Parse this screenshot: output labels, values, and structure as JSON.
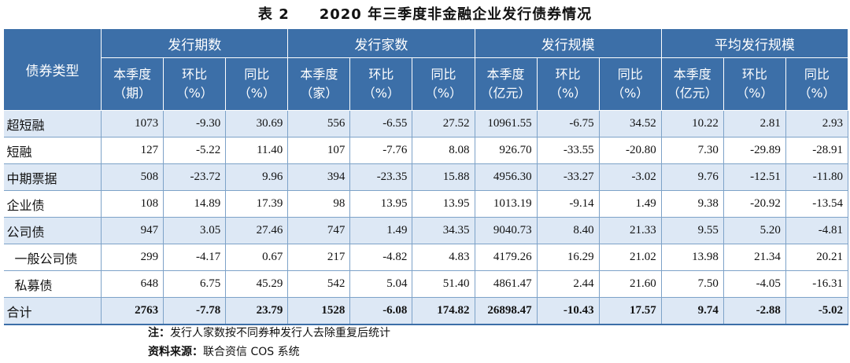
{
  "caption": "表 2　　2020 年三季度非金融企业发行债券情况",
  "header": {
    "type_label": "债券类型",
    "groups": [
      "发行期数",
      "发行家数",
      "发行规模",
      "平均发行规模"
    ],
    "subcols": [
      [
        "本季度",
        "（期）"
      ],
      [
        "环比",
        "（%）"
      ],
      [
        "同比",
        "（%）"
      ],
      [
        "本季度",
        "（家）"
      ],
      [
        "环比",
        "（%）"
      ],
      [
        "同比",
        "（%）"
      ],
      [
        "本季度",
        "（亿元）"
      ],
      [
        "环比",
        "（%）"
      ],
      [
        "同比",
        "（%）"
      ],
      [
        "本季度",
        "（亿元）"
      ],
      [
        "环比",
        "（%）"
      ],
      [
        "同比",
        "（%）"
      ]
    ]
  },
  "rows": [
    {
      "name": "超短融",
      "vals": [
        "1073",
        "-9.30",
        "30.69",
        "556",
        "-6.55",
        "27.52",
        "10961.55",
        "-6.75",
        "34.52",
        "10.22",
        "2.81",
        "2.93"
      ]
    },
    {
      "name": "短融",
      "vals": [
        "127",
        "-5.22",
        "11.40",
        "107",
        "-7.76",
        "8.08",
        "926.70",
        "-33.55",
        "-20.80",
        "7.30",
        "-29.89",
        "-28.91"
      ]
    },
    {
      "name": "中期票据",
      "vals": [
        "508",
        "-23.72",
        "9.96",
        "394",
        "-23.35",
        "15.88",
        "4956.30",
        "-33.27",
        "-3.02",
        "9.76",
        "-12.51",
        "-11.80"
      ]
    },
    {
      "name": "企业债",
      "vals": [
        "108",
        "14.89",
        "17.39",
        "98",
        "13.95",
        "13.95",
        "1013.19",
        "-9.14",
        "1.49",
        "9.38",
        "-20.92",
        "-13.54"
      ]
    },
    {
      "name": "公司债",
      "vals": [
        "947",
        "3.05",
        "27.46",
        "747",
        "1.49",
        "34.35",
        "9040.73",
        "8.40",
        "21.33",
        "9.55",
        "5.20",
        "-4.81"
      ]
    },
    {
      "name": "一般公司债",
      "vals": [
        "299",
        "-4.17",
        "0.67",
        "217",
        "-4.82",
        "4.83",
        "4179.26",
        "16.29",
        "21.02",
        "13.98",
        "21.34",
        "20.21"
      ]
    },
    {
      "name": "私募债",
      "vals": [
        "648",
        "6.75",
        "45.29",
        "542",
        "5.04",
        "51.40",
        "4861.47",
        "2.44",
        "21.60",
        "7.50",
        "-4.05",
        "-16.31"
      ]
    },
    {
      "name": "合计",
      "vals": [
        "2763",
        "-7.78",
        "23.79",
        "1528",
        "-6.08",
        "174.82",
        "26898.47",
        "-10.43",
        "17.57",
        "9.74",
        "-2.88",
        "-5.02"
      ]
    }
  ],
  "notes": {
    "note_label": "注：",
    "note_text": "发行人家数按不同券种发行人去除重复后统计",
    "source_label": "资料来源：",
    "source_text": "联合资信 COS 系统"
  }
}
